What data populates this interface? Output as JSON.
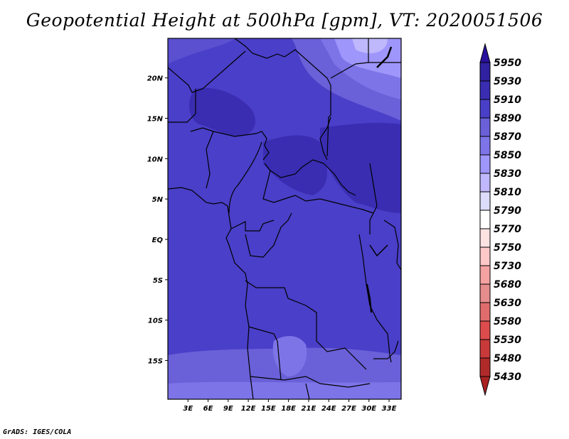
{
  "title": "Geopotential Height at 500hPa [gpm], VT: 2020051506",
  "credit": "GrADS: IGES/COLA",
  "map": {
    "lat_labels": [
      "20N",
      "15N",
      "10N",
      "5N",
      "EQ",
      "5S",
      "10S",
      "15S"
    ],
    "lat_values": [
      20,
      15,
      10,
      5,
      0,
      -5,
      -10,
      -15
    ],
    "lon_labels": [
      "3E",
      "6E",
      "9E",
      "12E",
      "15E",
      "18E",
      "21E",
      "24E",
      "27E",
      "30E",
      "33E"
    ],
    "lon_values": [
      3,
      6,
      9,
      12,
      15,
      18,
      21,
      24,
      27,
      30,
      33
    ],
    "lat_range": [
      -19.8,
      24.9
    ],
    "lon_range": [
      0,
      34.8
    ]
  },
  "colorbar": {
    "labels": [
      "5950",
      "5930",
      "5910",
      "5890",
      "5870",
      "5850",
      "5830",
      "5810",
      "5790",
      "5770",
      "5750",
      "5730",
      "5680",
      "5630",
      "5580",
      "5530",
      "5480",
      "5430"
    ],
    "colors": {
      "above": "#2a109e",
      "bands": [
        "#2f219f",
        "#3a2db2",
        "#4a3fc8",
        "#6a60d8",
        "#7d74e8",
        "#9f96fb",
        "#bfb8fc",
        "#dcdcfc",
        "#ffffff",
        "#fde2e2",
        "#fcc8c8",
        "#f5a2a2",
        "#e58c8c",
        "#e06c6c",
        "#dc4c4c",
        "#c83a3a",
        "#b02a2a"
      ],
      "below": "#a82222"
    }
  }
}
